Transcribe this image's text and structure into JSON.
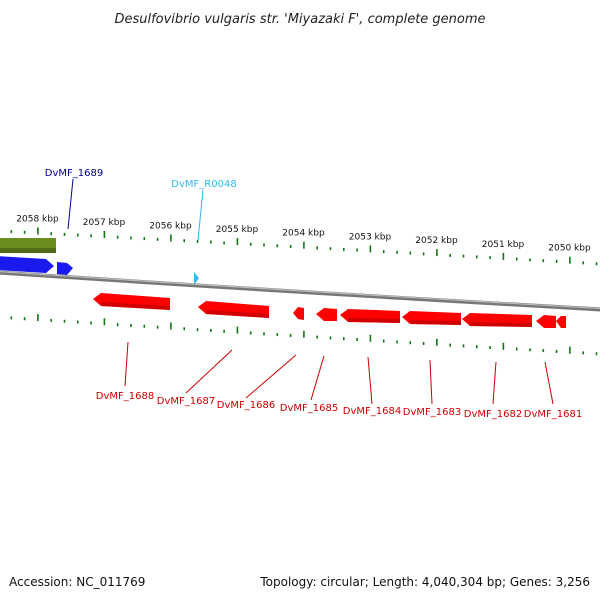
{
  "title": "Desulfovibrio vulgaris str. 'Miyazaki F', complete genome",
  "footer": {
    "accession": "Accession: NC_011769",
    "summary": "Topology: circular; Length: 4,040,304 bp; Genes: 3,256"
  },
  "scale_labels": [
    "2058 kbp",
    "2057 kbp",
    "2056 kbp",
    "2055 kbp",
    "2054 kbp",
    "2053 kbp",
    "2052 kbp",
    "2051 kbp",
    "2050 kbp"
  ],
  "genes_above": [
    {
      "label": "DvMF_1689",
      "color": "#00008b",
      "strand": "reverse"
    },
    {
      "label": "DvMF_R0048",
      "color": "#33bbee",
      "strand": "forward"
    }
  ],
  "genes_below": [
    {
      "label": "DvMF_1688",
      "color": "#cc0000"
    },
    {
      "label": "DvMF_1687",
      "color": "#cc0000"
    },
    {
      "label": "DvMF_1686",
      "color": "#cc0000"
    },
    {
      "label": "DvMF_1685",
      "color": "#cc0000"
    },
    {
      "label": "DvMF_1684",
      "color": "#cc0000"
    },
    {
      "label": "DvMF_1683",
      "color": "#cc0000"
    },
    {
      "label": "DvMF_1682",
      "color": "#cc0000"
    },
    {
      "label": "DvMF_1681",
      "color": "#cc0000"
    }
  ],
  "colors": {
    "forward_gene": "#ff0000",
    "reverse_gene": "#0000ee",
    "other_feature": "#6b8e23",
    "trna_marker": "#33bbee",
    "backbone": "#888888",
    "tick": "#117711"
  }
}
